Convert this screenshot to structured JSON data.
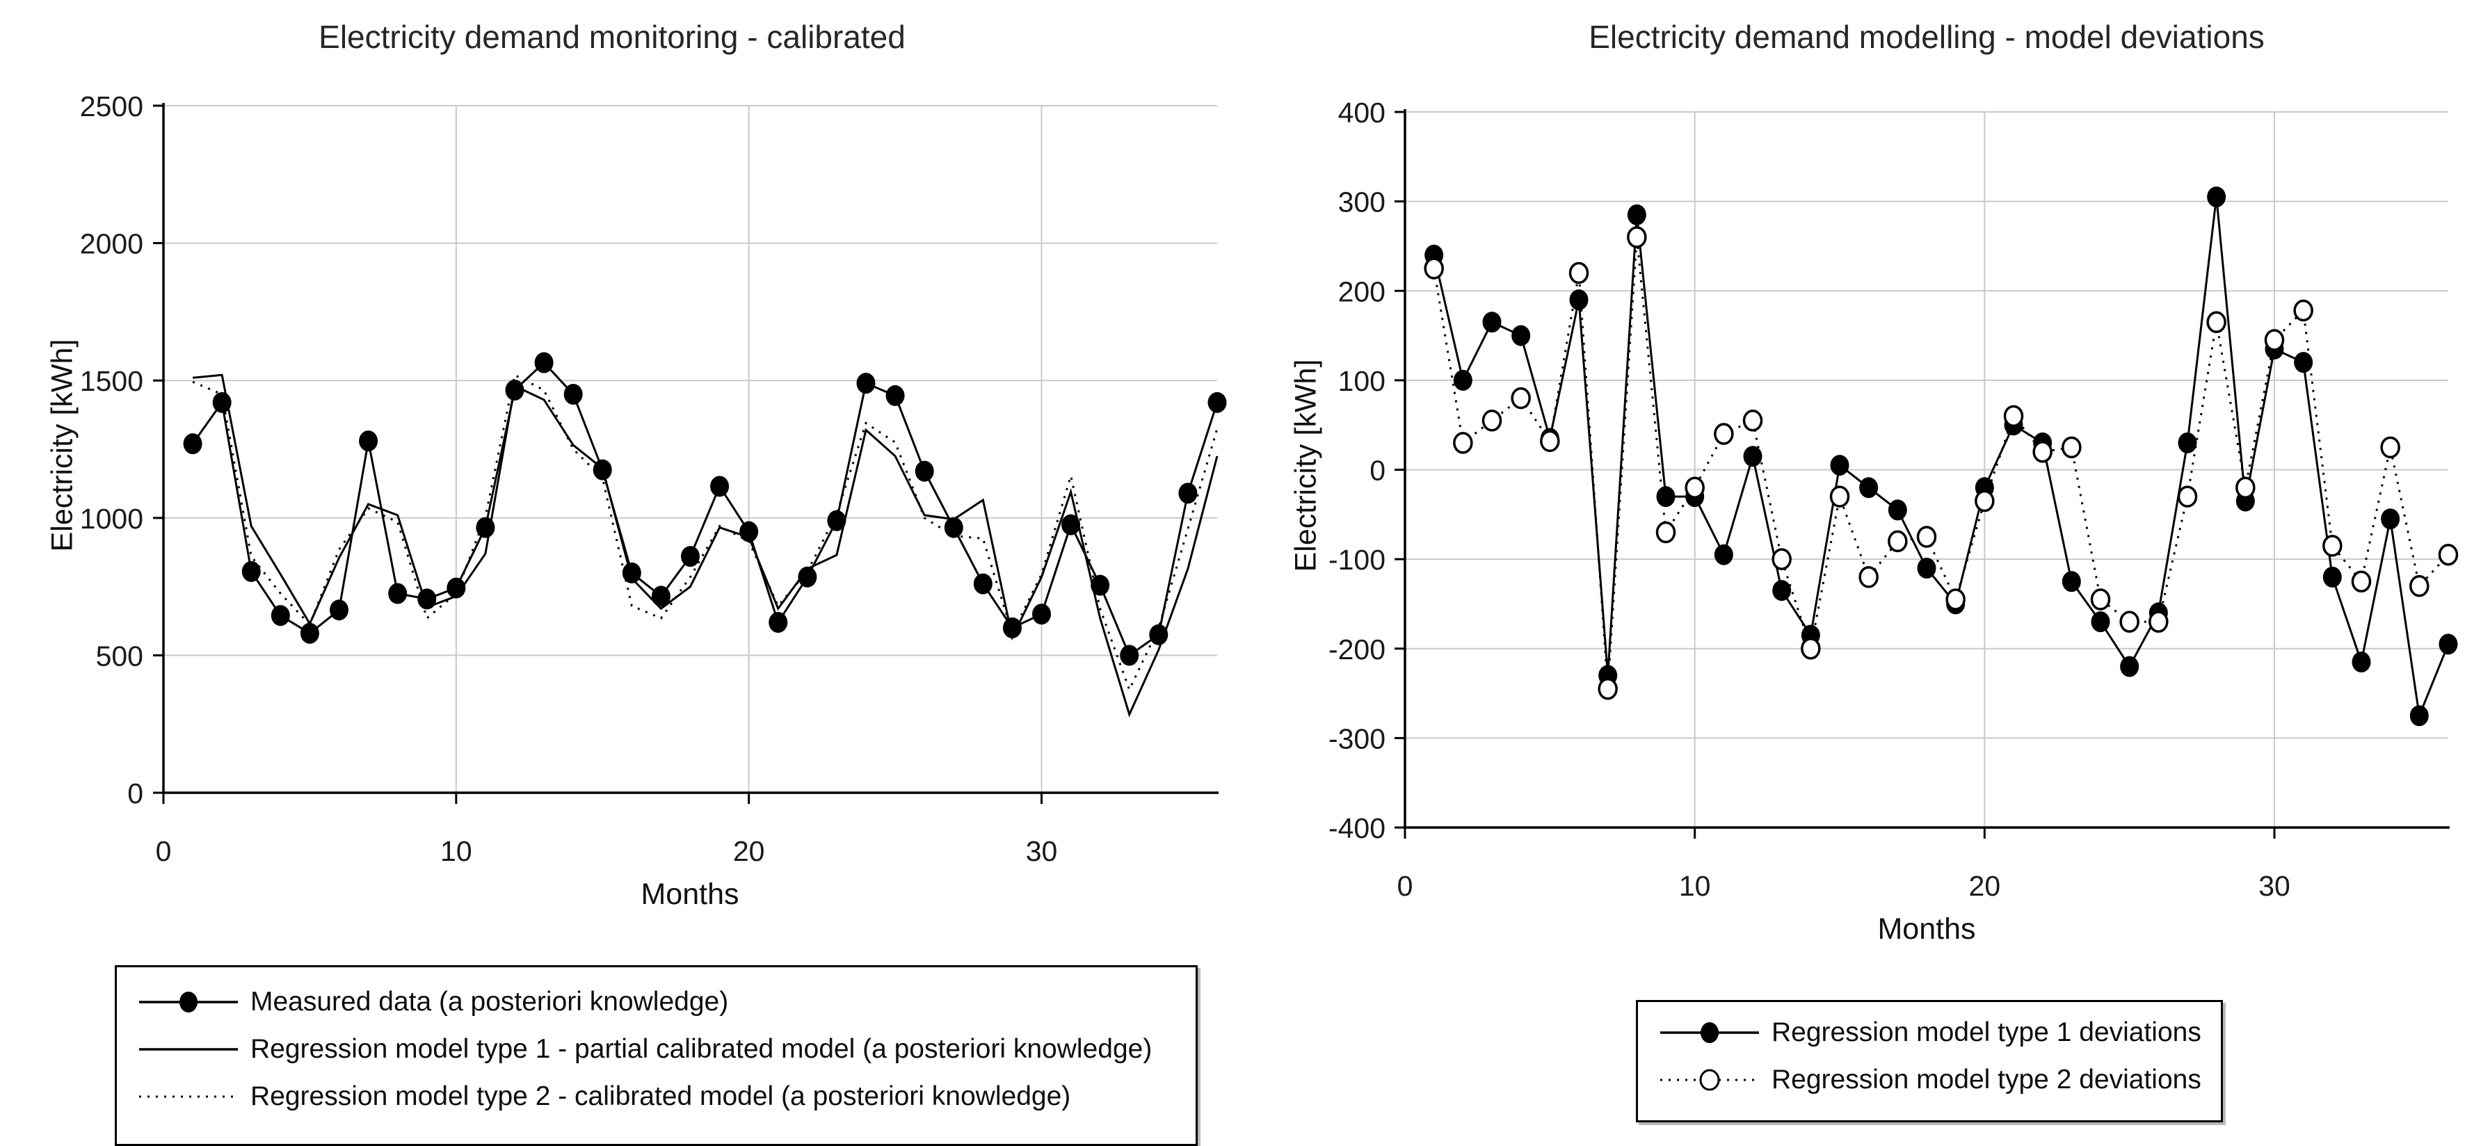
{
  "colors": {
    "grid": "#c9c9c9",
    "axis": "#000000",
    "text": "#1a1a1a",
    "series": "#000000",
    "background": "#ffffff"
  },
  "chart_data": [
    {
      "type": "line",
      "title": "Electricity demand monitoring - calibrated",
      "xlabel": "Months",
      "ylabel": "Electricity [kWh]",
      "xlim": [
        0,
        36
      ],
      "ylim": [
        0,
        2500
      ],
      "xticks": [
        0,
        10,
        20,
        30
      ],
      "yticks": [
        0,
        500,
        1000,
        1500,
        2000,
        2500
      ],
      "grid": true,
      "legend_position": "below-left",
      "x": [
        1,
        2,
        3,
        4,
        5,
        6,
        7,
        8,
        9,
        10,
        11,
        12,
        13,
        14,
        15,
        16,
        17,
        18,
        19,
        20,
        21,
        22,
        23,
        24,
        25,
        26,
        27,
        28,
        29,
        30,
        31,
        32,
        33,
        34,
        35,
        36
      ],
      "series": [
        {
          "name": "Measured data (a posteriori knowledge)",
          "line": "solid",
          "marker": "filled-circle",
          "values": [
            1270,
            1420,
            805,
            645,
            580,
            665,
            1280,
            725,
            705,
            745,
            965,
            1465,
            1565,
            1450,
            1175,
            800,
            715,
            860,
            1115,
            950,
            620,
            785,
            990,
            1490,
            1445,
            1170,
            965,
            760,
            600,
            650,
            975,
            755,
            500,
            575,
            1090,
            1420
          ]
        },
        {
          "name": "Regression model type 1 - partial calibrated model (a posteriori knowledge)",
          "line": "solid",
          "marker": "none",
          "values": [
            1510,
            1520,
            970,
            795,
            615,
            855,
            1050,
            1010,
            675,
            715,
            870,
            1480,
            1430,
            1265,
            1180,
            780,
            670,
            750,
            965,
            930,
            670,
            815,
            865,
            1320,
            1225,
            1010,
            995,
            1065,
            565,
            785,
            1095,
            635,
            285,
            520,
            815,
            1225
          ]
        },
        {
          "name": "Regression model type 2 - calibrated model (a posteriori knowledge)",
          "line": "dotted",
          "marker": "none",
          "values": [
            1495,
            1450,
            860,
            725,
            612,
            885,
            1035,
            985,
            635,
            725,
            1005,
            1520,
            1465,
            1250,
            1145,
            680,
            635,
            785,
            970,
            915,
            680,
            805,
            1015,
            1345,
            1275,
            1000,
            935,
            925,
            580,
            795,
            1153,
            670,
            375,
            600,
            960,
            1325
          ]
        }
      ]
    },
    {
      "type": "line",
      "title": "Electricity demand modelling - model deviations",
      "xlabel": "Months",
      "ylabel": "Electricity [kWh]",
      "xlim": [
        0,
        36
      ],
      "ylim": [
        -400,
        400
      ],
      "xticks": [
        0,
        10,
        20,
        30
      ],
      "yticks": [
        -400,
        -300,
        -200,
        -100,
        0,
        100,
        200,
        300,
        400
      ],
      "grid": true,
      "legend_position": "below-center",
      "x": [
        1,
        2,
        3,
        4,
        5,
        6,
        7,
        8,
        9,
        10,
        11,
        12,
        13,
        14,
        15,
        16,
        17,
        18,
        19,
        20,
        21,
        22,
        23,
        24,
        25,
        26,
        27,
        28,
        29,
        30,
        31,
        32,
        33,
        34,
        35,
        36
      ],
      "series": [
        {
          "name": "Regression model type 1 deviations",
          "line": "solid",
          "marker": "filled-circle",
          "values": [
            240,
            100,
            165,
            150,
            35,
            190,
            -230,
            285,
            -30,
            -30,
            -95,
            15,
            -135,
            -185,
            5,
            -20,
            -45,
            -110,
            -150,
            -20,
            50,
            30,
            -125,
            -170,
            -220,
            -160,
            30,
            305,
            -35,
            135,
            120,
            -120,
            -215,
            -55,
            -275,
            -195
          ]
        },
        {
          "name": "Regression model type 2 deviations",
          "line": "dotted",
          "marker": "open-circle",
          "values": [
            225,
            30,
            55,
            80,
            32,
            220,
            -245,
            260,
            -70,
            -20,
            40,
            55,
            -100,
            -200,
            -30,
            -120,
            -80,
            -75,
            -145,
            -35,
            60,
            20,
            25,
            -145,
            -170,
            -170,
            -30,
            165,
            -20,
            145,
            178,
            -85,
            -125,
            25,
            -130,
            -95
          ]
        }
      ]
    }
  ]
}
